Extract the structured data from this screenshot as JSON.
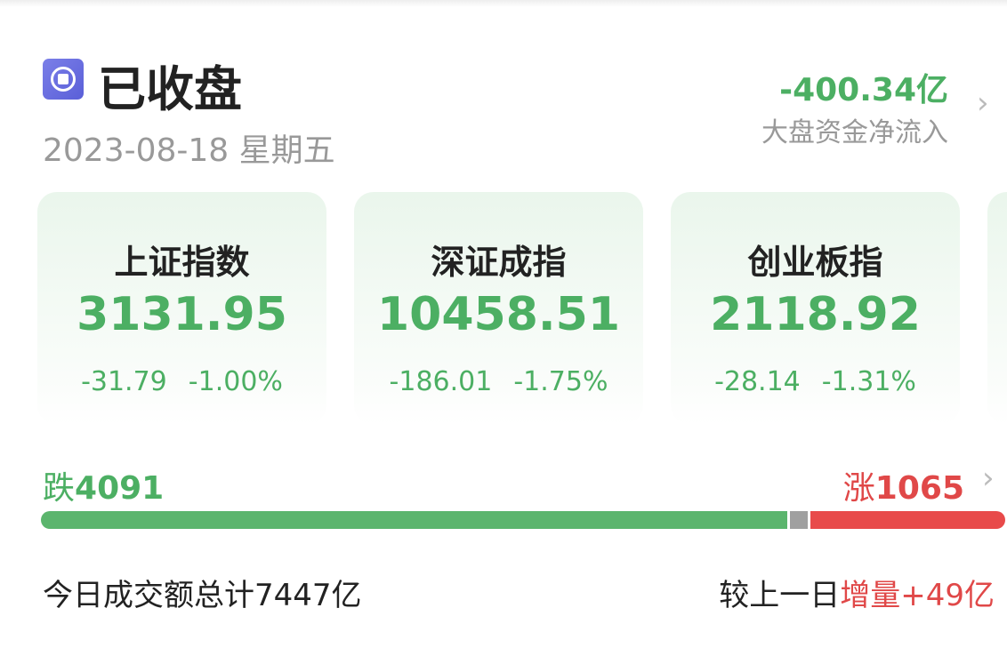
{
  "header": {
    "status": "已收盘",
    "status_icon": "market-closed-icon",
    "date": "2023-08-18",
    "weekday": "星期五",
    "net_flow": "-400.34亿",
    "net_flow_label": "大盘资金净流入"
  },
  "indices": [
    {
      "name": "上证指数",
      "value": "3131.95",
      "change": "-31.79",
      "pct": "-1.00%"
    },
    {
      "name": "深证成指",
      "value": "10458.51",
      "change": "-186.01",
      "pct": "-1.75%"
    },
    {
      "name": "创业板指",
      "value": "2118.92",
      "change": "-28.14",
      "pct": "-1.31%"
    }
  ],
  "breadth": {
    "fall_label": "跌",
    "fall": "4091",
    "rise_label": "涨",
    "rise": "1065",
    "fall_count": 4091,
    "rise_count": 1065,
    "colors": {
      "fall": "#5bb56d",
      "flat": "#a0a0a0",
      "rise": "#e84a4a"
    }
  },
  "footer": {
    "turnover_label": "今日成交额总计",
    "turnover": "7447亿",
    "compare_label": "较上一日",
    "increase_label": "增量",
    "increase": "+49亿"
  }
}
